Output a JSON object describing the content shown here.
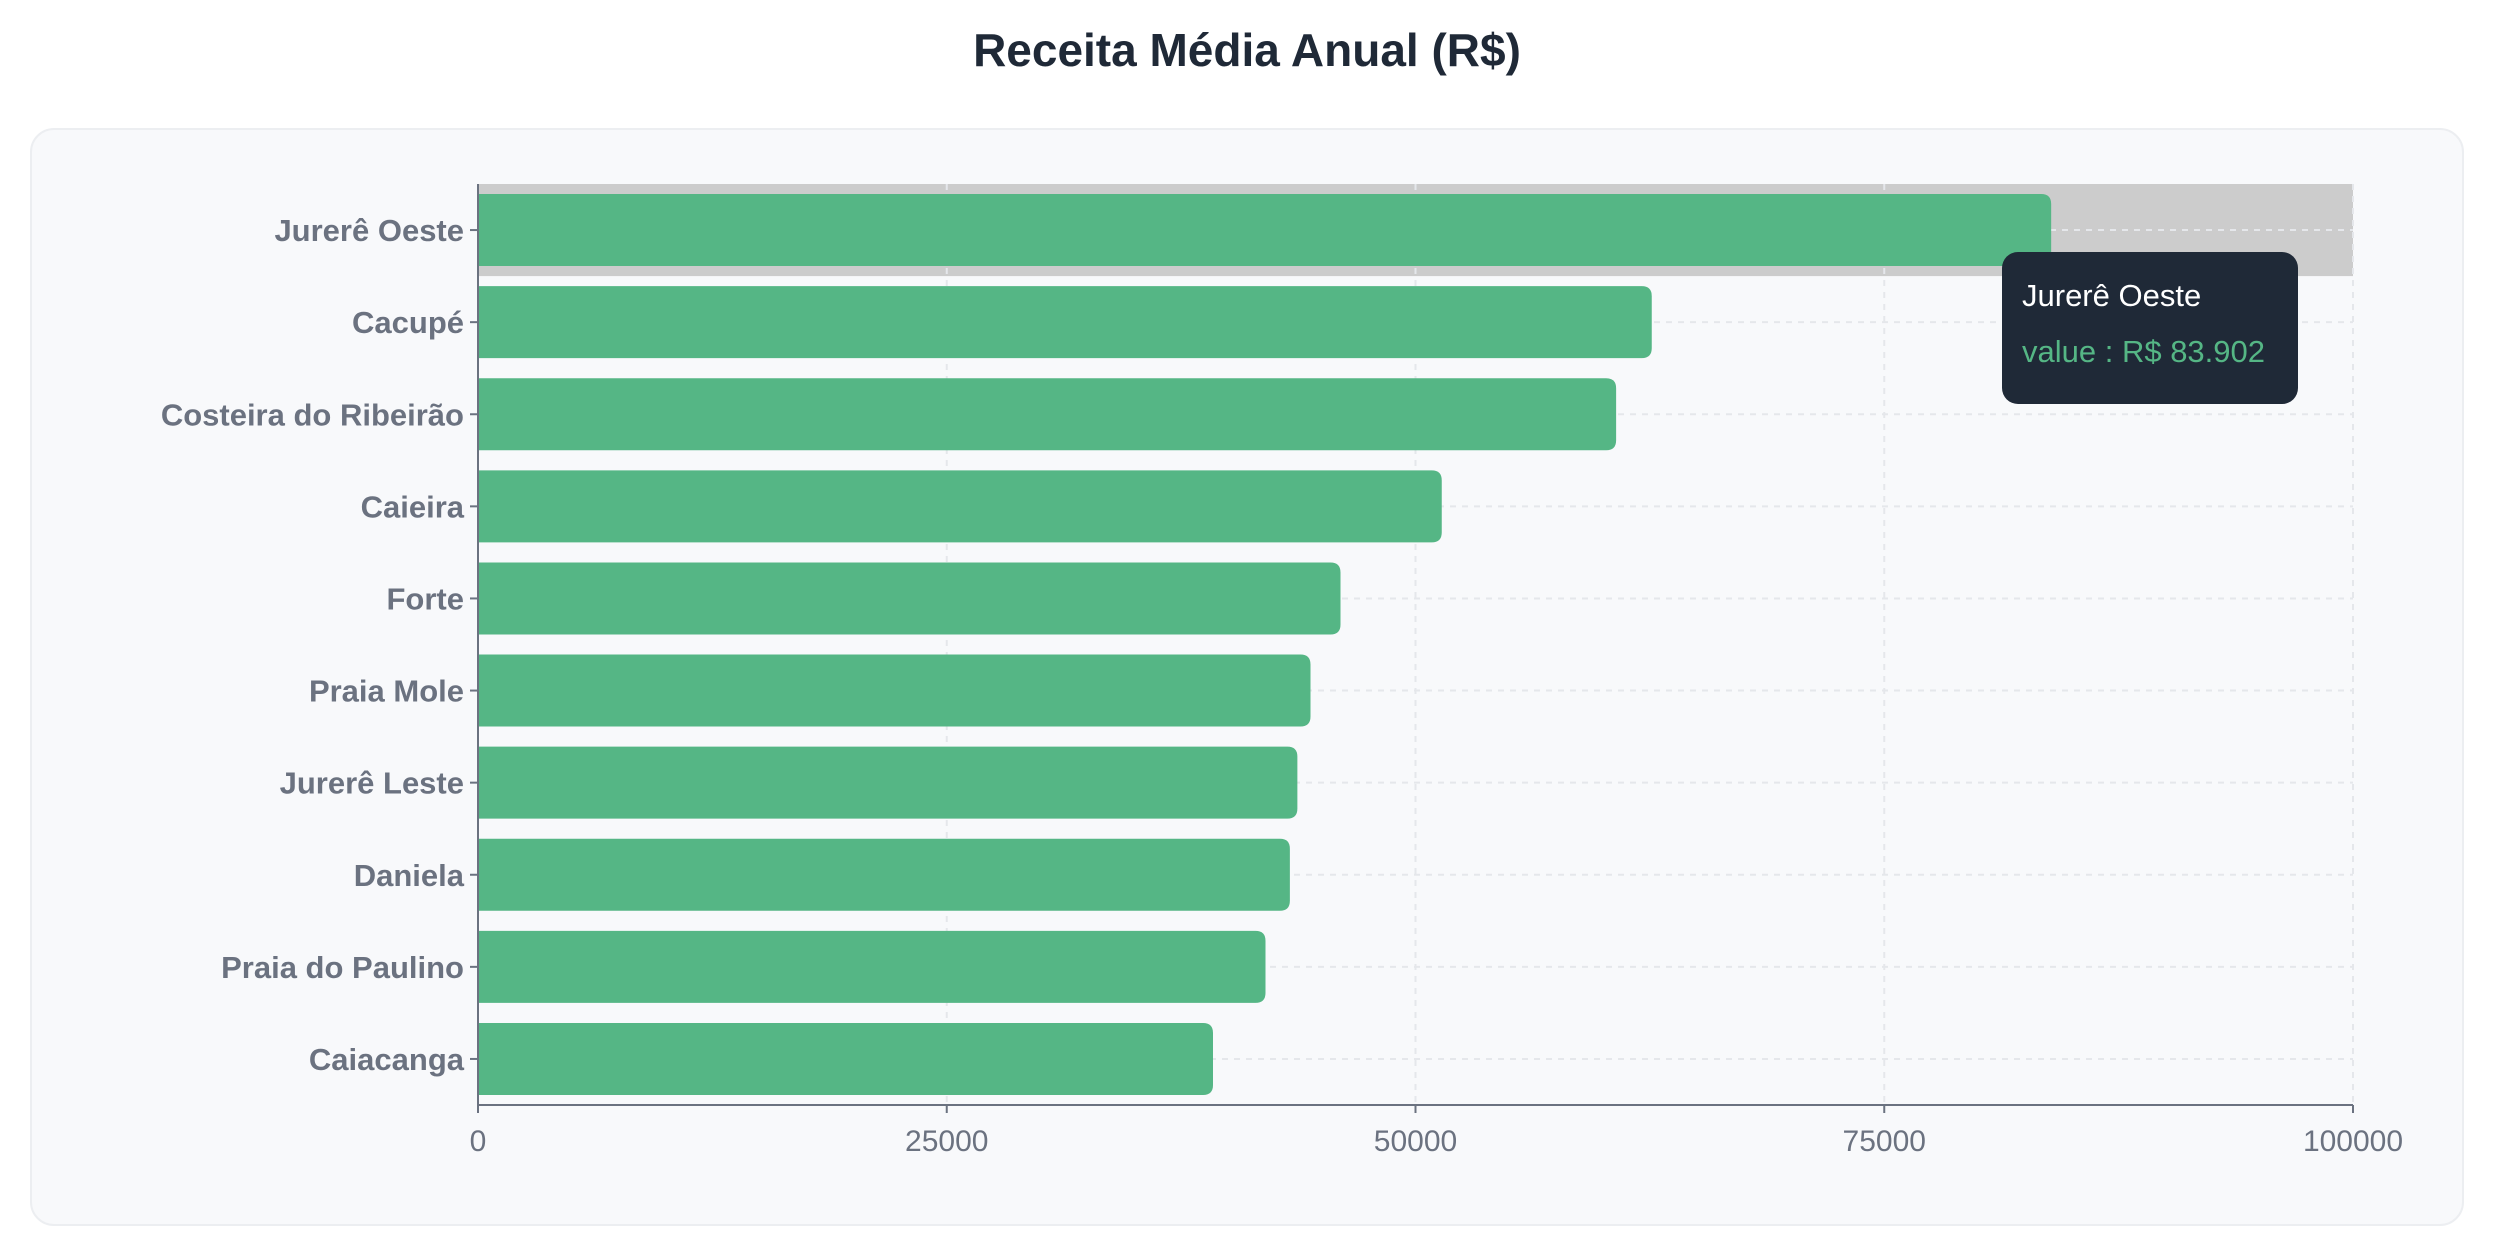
{
  "chart_data": {
    "type": "bar",
    "orientation": "horizontal",
    "title": "Receita Média Anual (R$)",
    "categories": [
      "Jurerê Oeste",
      "Cacupé",
      "Costeira do Ribeirão",
      "Caieira",
      "Forte",
      "Praia Mole",
      "Jurerê Leste",
      "Daniela",
      "Praia do Paulino",
      "Caiacanga"
    ],
    "values": [
      83902,
      62600,
      60700,
      51400,
      46000,
      44400,
      43700,
      43300,
      42000,
      39200
    ],
    "xlim": [
      0,
      100000
    ],
    "xticks": [
      0,
      25000,
      50000,
      75000,
      100000
    ],
    "grid": true,
    "bar_color": "#55b685",
    "highlight_color": "#cccccc",
    "highlighted_category": "Jurerê Oeste",
    "tooltip": {
      "title": "Jurerê Oeste",
      "label": "value : R$ 83.902"
    }
  }
}
